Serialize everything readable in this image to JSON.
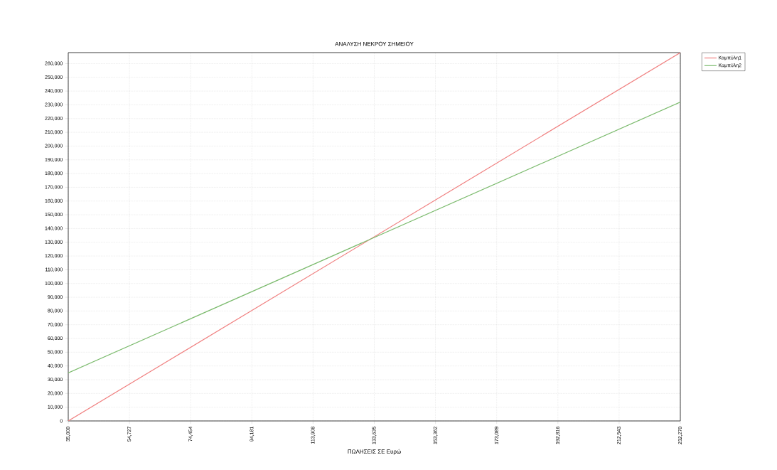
{
  "chart_data": {
    "type": "line",
    "title": "ΑΝΑΛΥΣΗ ΝΕΚΡΟΥ ΣΗΜΕΙΟΥ",
    "xlabel": "ΠΩΛΗΣΕΙΣ ΣΕ Ευρώ",
    "x": [
      35000,
      232270
    ],
    "series": [
      {
        "name": "Καμπύλη1",
        "color": "#f08080",
        "values": [
          0,
          268000
        ]
      },
      {
        "name": "Καμπύλη2",
        "color": "#7cbb6e",
        "values": [
          35000,
          232000
        ]
      }
    ],
    "xlim": [
      35000,
      232270
    ],
    "xticks": [
      {
        "value": 35000,
        "label": "35,000"
      },
      {
        "value": 54727,
        "label": "54,727"
      },
      {
        "value": 74454,
        "label": "74,454"
      },
      {
        "value": 94181,
        "label": "94,181"
      },
      {
        "value": 113908,
        "label": "113,908"
      },
      {
        "value": 133635,
        "label": "133,635"
      },
      {
        "value": 153362,
        "label": "153,362"
      },
      {
        "value": 173089,
        "label": "173,089"
      },
      {
        "value": 192816,
        "label": "192,816"
      },
      {
        "value": 212543,
        "label": "212,543"
      },
      {
        "value": 232270,
        "label": "232,270"
      }
    ],
    "ylim": [
      0,
      268000
    ],
    "yticks": [
      0,
      {
        "value": 10000,
        "label": "10,000"
      },
      {
        "value": 20000,
        "label": "20,000"
      },
      {
        "value": 30000,
        "label": "30,000"
      },
      {
        "value": 40000,
        "label": "40,000"
      },
      {
        "value": 50000,
        "label": "50,000"
      },
      {
        "value": 60000,
        "label": "60,000"
      },
      {
        "value": 70000,
        "label": "70,000"
      },
      {
        "value": 80000,
        "label": "80,000"
      },
      {
        "value": 90000,
        "label": "90,000"
      },
      {
        "value": 100000,
        "label": "100,000"
      },
      {
        "value": 110000,
        "label": "110,000"
      },
      {
        "value": 120000,
        "label": "120,000"
      },
      {
        "value": 130000,
        "label": "130,000"
      },
      {
        "value": 140000,
        "label": "140,000"
      },
      {
        "value": 150000,
        "label": "150,000"
      },
      {
        "value": 160000,
        "label": "160,000"
      },
      {
        "value": 170000,
        "label": "170,000"
      },
      {
        "value": 180000,
        "label": "180,000"
      },
      {
        "value": 190000,
        "label": "190,000"
      },
      {
        "value": 200000,
        "label": "200,000"
      },
      {
        "value": 210000,
        "label": "210,000"
      },
      {
        "value": 220000,
        "label": "220,000"
      },
      {
        "value": 230000,
        "label": "230,000"
      },
      {
        "value": 240000,
        "label": "240,000"
      },
      {
        "value": 250000,
        "label": "250,000"
      },
      {
        "value": 260000,
        "label": "260,000"
      }
    ],
    "grid": true,
    "line_style": "solid",
    "marker": "none",
    "legend": "top right"
  }
}
